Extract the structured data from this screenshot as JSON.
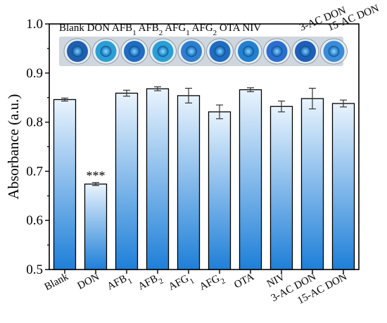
{
  "chart_data": {
    "type": "bar",
    "ylabel": "Absorbance (a.u.)",
    "ylim": [
      0.5,
      1.0
    ],
    "yticks": [
      "0.5",
      "0.6",
      "0.7",
      "0.8",
      "0.9",
      "1.0"
    ],
    "categories": [
      {
        "base": "Blank",
        "sub": ""
      },
      {
        "base": "DON",
        "sub": ""
      },
      {
        "base": "AFB",
        "sub": "1"
      },
      {
        "base": "AFB",
        "sub": "2"
      },
      {
        "base": "AFG",
        "sub": "1"
      },
      {
        "base": "AFG",
        "sub": "2"
      },
      {
        "base": "OTA",
        "sub": ""
      },
      {
        "base": "NIV",
        "sub": ""
      },
      {
        "base": "3-AC DON",
        "sub": ""
      },
      {
        "base": "15-AC DON",
        "sub": ""
      }
    ],
    "values": [
      0.846,
      0.674,
      0.859,
      0.868,
      0.854,
      0.821,
      0.866,
      0.832,
      0.848,
      0.838
    ],
    "errors": [
      0.003,
      0.003,
      0.006,
      0.004,
      0.015,
      0.014,
      0.004,
      0.011,
      0.021,
      0.007
    ],
    "annotations": [
      {
        "category_index": 1,
        "text": "***"
      }
    ],
    "inset": {
      "labels": [
        {
          "base": "Blank DON AFB",
          "sub": "1"
        },
        {
          "base": " AFB",
          "sub": "2"
        },
        {
          "base": " AFG",
          "sub": "1"
        },
        {
          "base": " AFG",
          "sub": "2"
        },
        {
          "base": " OTA NIV",
          "sub": ""
        }
      ],
      "rotated_labels": [
        "3-AC DON",
        "15-AC DON"
      ],
      "wells": [
        "#1e5fb0",
        "#2a9fd6",
        "#1f6cc2",
        "#2a9fd6",
        "#2e7fd0",
        "#1f6cc2",
        "#2280cf",
        "#2a6fd0",
        "#1d5fb8",
        "#3a8cd8"
      ]
    },
    "colors": {
      "bar_top": "#eaf4fd",
      "bar_bottom": "#1e7fd8",
      "axis": "#000000"
    }
  }
}
